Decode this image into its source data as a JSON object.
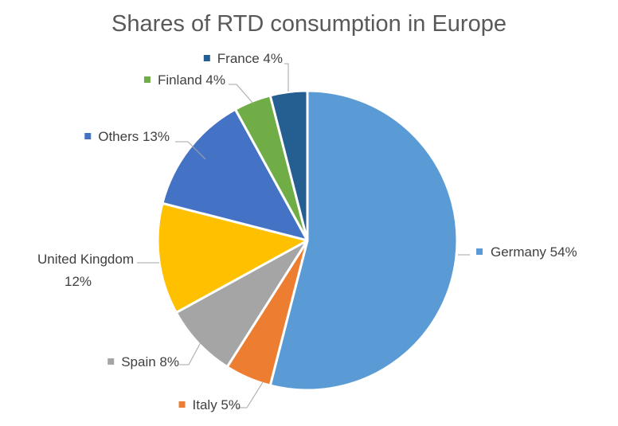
{
  "chart_data": {
    "type": "pie",
    "title": "Shares of RTD consumption in Europe",
    "slices": [
      {
        "label": "Germany",
        "value": 54,
        "color": "#5b9bd5",
        "text": [
          "Germany 54%"
        ],
        "side": "right"
      },
      {
        "label": "Italy",
        "value": 5,
        "color": "#ed7d31",
        "text": [
          "Italy 5%"
        ],
        "side": "right"
      },
      {
        "label": "Spain",
        "value": 8,
        "color": "#a5a5a5",
        "text": [
          "Spain 8%"
        ],
        "side": "left"
      },
      {
        "label": "United Kingdom",
        "value": 12,
        "color": "#ffc000",
        "text": [
          "United Kingdom",
          "12%"
        ],
        "side": "left"
      },
      {
        "label": "Others",
        "value": 13,
        "color": "#4472c4",
        "text": [
          "Others 13%"
        ],
        "side": "left"
      },
      {
        "label": "Finland",
        "value": 4,
        "color": "#70ad47",
        "text": [
          "Finland 4%"
        ],
        "side": "left"
      },
      {
        "label": "France",
        "value": 4,
        "color": "#255e91",
        "text": [
          "France 4%"
        ],
        "side": "left"
      }
    ],
    "legend": "data labels beside slices"
  }
}
